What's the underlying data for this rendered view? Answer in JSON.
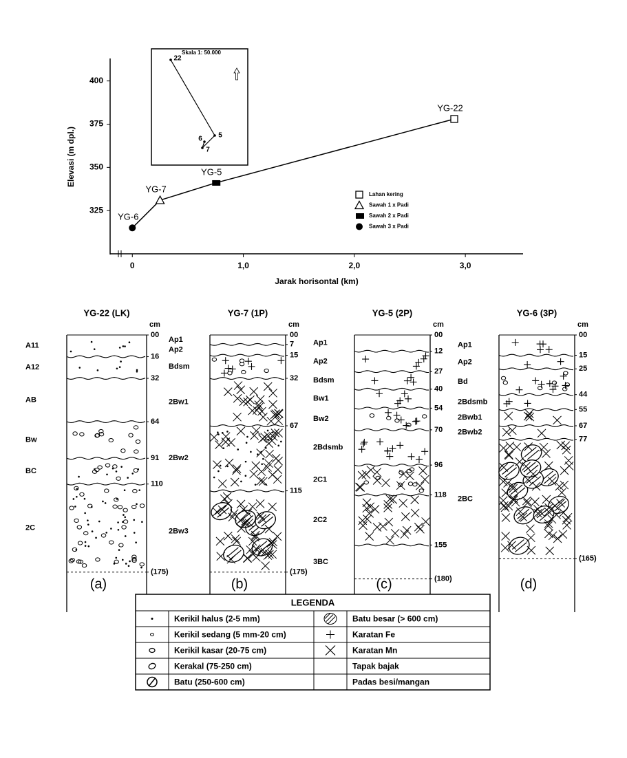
{
  "chart_data": {
    "type": "line",
    "ylabel": "Elevasi  (m dpl.)",
    "xlabel": "Jarak horisontal  (km)",
    "x": [
      0,
      0.25,
      0.75,
      2.9
    ],
    "series": [
      {
        "values": [
          315,
          331,
          341,
          378
        ],
        "color": "#000000",
        "point_labels": [
          "YG-6",
          "YG-7",
          "YG-5",
          "YG-22"
        ],
        "markers": [
          "filled-circle",
          "triangle",
          "filled-square",
          "square"
        ]
      }
    ],
    "xlim": [
      -0.2,
      3.52
    ],
    "ylim": [
      300,
      413
    ],
    "xticks": [
      0,
      {
        "value": 1,
        "label": "1,0"
      },
      {
        "value": 2,
        "label": "2,0"
      },
      {
        "value": 3,
        "label": "3,0"
      }
    ],
    "yticks": [
      325,
      350,
      375,
      400
    ],
    "legend": {
      "position": "lower right",
      "entries": [
        {
          "label": "Lahan kering",
          "marker": "square"
        },
        {
          "label": "Sawah 1 x Padi",
          "marker": "triangle"
        },
        {
          "label": "Sawah 2 x Padi",
          "marker": "filled-square"
        },
        {
          "label": "Sawah 3 x Padi",
          "marker": "filled-circle"
        }
      ]
    },
    "inset": {
      "scale": "Skala 1: 50.000",
      "points": [
        "22",
        "5",
        "6",
        "7"
      ]
    }
  },
  "profiles": [
    {
      "title": "YG-22 (LK)",
      "caption": "(a)",
      "unit": "cm",
      "depths": [
        {
          "value": 0,
          "label": "00"
        },
        16,
        32,
        64,
        91,
        110,
        {
          "value": 175,
          "label": "(175)"
        }
      ],
      "horizons": [
        {
          "name": "A11",
          "fill": [
            "dot"
          ]
        },
        {
          "name": "A12",
          "fill": [
            "dot"
          ]
        },
        {
          "name": "AB",
          "fill": []
        },
        {
          "name": "Bw",
          "fill": [
            "circle"
          ]
        },
        {
          "name": "BC",
          "fill": [
            "circle",
            "dot"
          ]
        },
        {
          "name": "2C",
          "fill": [
            "circle",
            "dot"
          ]
        }
      ]
    },
    {
      "title": "YG-7 (1P)",
      "caption": "(b)",
      "unit": "cm",
      "depths": [
        {
          "value": 0,
          "label": "00"
        },
        7,
        15,
        32,
        67,
        115,
        {
          "value": 175,
          "label": "(175)"
        }
      ],
      "horizons": [
        {
          "name": "Ap1",
          "fill": []
        },
        {
          "name": "Ap2",
          "fill": []
        },
        {
          "name": "Bdsm",
          "fill": [
            "plus",
            "circle"
          ]
        },
        {
          "name": "2Bw1",
          "fill": [
            "cross"
          ]
        },
        {
          "name": "2Bw2",
          "fill": [
            "cross",
            "dot"
          ]
        },
        {
          "name": "2Bw3",
          "fill": [
            "stone",
            "cross"
          ]
        }
      ]
    },
    {
      "title": "YG-5 (2P)",
      "caption": "(c)",
      "unit": "cm",
      "depths": [
        {
          "value": 0,
          "label": "00"
        },
        12,
        27,
        40,
        54,
        70,
        96,
        118,
        155,
        {
          "value": 180,
          "label": "(180)"
        }
      ],
      "horizons": [
        {
          "name": "Ap1",
          "fill": []
        },
        {
          "name": "Ap2",
          "fill": [
            "plus"
          ]
        },
        {
          "name": "Bdsm",
          "fill": [
            "plus"
          ]
        },
        {
          "name": "Bw1",
          "fill": [
            "plus"
          ]
        },
        {
          "name": "Bw2",
          "fill": [
            "plus",
            "circle"
          ]
        },
        {
          "name": "2Bdsmb",
          "fill": [
            "plus"
          ]
        },
        {
          "name": "2C1",
          "fill": [
            "cross",
            "circle"
          ]
        },
        {
          "name": "2C2",
          "fill": [
            "cross"
          ]
        },
        {
          "name": "3BC",
          "fill": []
        }
      ]
    },
    {
      "title": "YG-6 (3P)",
      "caption": "(d)",
      "unit": "cm",
      "depths": [
        {
          "value": 0,
          "label": "00"
        },
        15,
        25,
        44,
        55,
        67,
        77,
        {
          "value": 165,
          "label": "(165)"
        }
      ],
      "horizons": [
        {
          "name": "Ap1",
          "fill": [
            "plus"
          ]
        },
        {
          "name": "Ap2",
          "fill": [
            "plus"
          ]
        },
        {
          "name": "Bd",
          "fill": [
            "plus",
            "circle"
          ]
        },
        {
          "name": "2Bdsmb",
          "fill": [
            "plus"
          ]
        },
        {
          "name": "2Bwb1",
          "fill": [
            "cross"
          ]
        },
        {
          "name": "2Bwb2",
          "fill": [
            "cross"
          ]
        },
        {
          "name": "2BC",
          "fill": [
            "stone",
            "cross"
          ]
        }
      ]
    }
  ],
  "legend_table": {
    "title": "LEGENDA",
    "rows": [
      [
        "Kerikil halus (2-5 mm)",
        "Batu besar (> 600 cm)"
      ],
      [
        "Kerikil sedang (5 mm-20 cm)",
        "Karatan Fe"
      ],
      [
        "Kerikil kasar (20-75 cm)",
        "Karatan Mn"
      ],
      [
        "Kerakal (75-250 cm)",
        "Tapak bajak"
      ],
      [
        "Batu (250-600 cm)",
        "Padas besi/mangan"
      ]
    ]
  }
}
